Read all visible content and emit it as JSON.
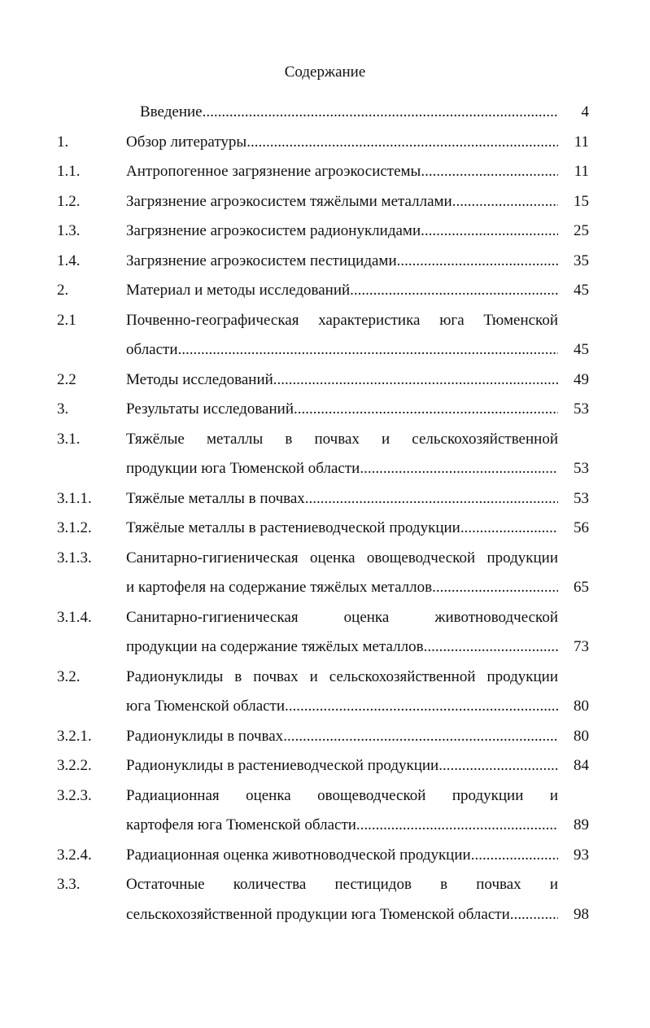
{
  "title": "Содержание",
  "entries": [
    {
      "num": "",
      "lines": [
        "Введение"
      ],
      "page": "4",
      "indent": true
    },
    {
      "num": "1.",
      "lines": [
        "Обзор литературы"
      ],
      "page": "11"
    },
    {
      "num": "1.1.",
      "lines": [
        "Антропогенное загрязнение агроэкосистемы"
      ],
      "page": "11"
    },
    {
      "num": "1.2.",
      "lines": [
        "Загрязнение агроэкосистем тяжёлыми металлами"
      ],
      "page": "15"
    },
    {
      "num": "1.3.",
      "lines": [
        "Загрязнение агроэкосистем радионуклидами"
      ],
      "page": "25"
    },
    {
      "num": "1.4.",
      "lines": [
        "Загрязнение агроэкосистем пестицидами"
      ],
      "page": "35"
    },
    {
      "num": "2.",
      "lines": [
        "Материал и методы исследований"
      ],
      "page": "45"
    },
    {
      "num": "2.1",
      "lines": [
        "Почвенно-географическая характеристика юга Тюменской",
        "области"
      ],
      "page": "45"
    },
    {
      "num": "2.2",
      "lines": [
        "Методы исследований"
      ],
      "page": "49"
    },
    {
      "num": "3.",
      "lines": [
        "Результаты исследований"
      ],
      "page": "53"
    },
    {
      "num": "3.1.",
      "lines": [
        "Тяжёлые металлы в почвах и сельскохозяйственной",
        "продукции юга Тюменской области"
      ],
      "page": "53"
    },
    {
      "num": "3.1.1.",
      "lines": [
        "Тяжёлые металлы в почвах"
      ],
      "page": "53"
    },
    {
      "num": "3.1.2.",
      "lines": [
        "Тяжёлые металлы в растениеводческой продукции"
      ],
      "page": "56"
    },
    {
      "num": "3.1.3.",
      "lines": [
        "Санитарно-гигиеническая оценка овощеводческой продукции",
        "и картофеля на содержание тяжёлых металлов"
      ],
      "page": "65"
    },
    {
      "num": "3.1.4.",
      "lines": [
        "Санитарно-гигиеническая оценка животноводческой",
        "продукции на содержание тяжёлых металлов"
      ],
      "page": "73"
    },
    {
      "num": "3.2.",
      "lines": [
        "Радионуклиды в почвах и сельскохозяйственной продукции",
        "юга Тюменской области"
      ],
      "page": "80"
    },
    {
      "num": "3.2.1.",
      "lines": [
        "Радионуклиды в почвах"
      ],
      "page": "80"
    },
    {
      "num": "3.2.2.",
      "lines": [
        "Радионуклиды в растениеводческой продукции"
      ],
      "page": "84"
    },
    {
      "num": "3.2.3.",
      "lines": [
        "Радиационная оценка овощеводческой продукции и",
        "картофеля юга Тюменской области"
      ],
      "page": "89"
    },
    {
      "num": "3.2.4.",
      "lines": [
        "Радиационная оценка животноводческой продукции "
      ],
      "page": "93"
    },
    {
      "num": "3.3.",
      "lines": [
        "Остаточные количества пестицидов в почвах и",
        "сельскохозяйственной  продукции юга Тюменской области"
      ],
      "page": "98"
    }
  ]
}
